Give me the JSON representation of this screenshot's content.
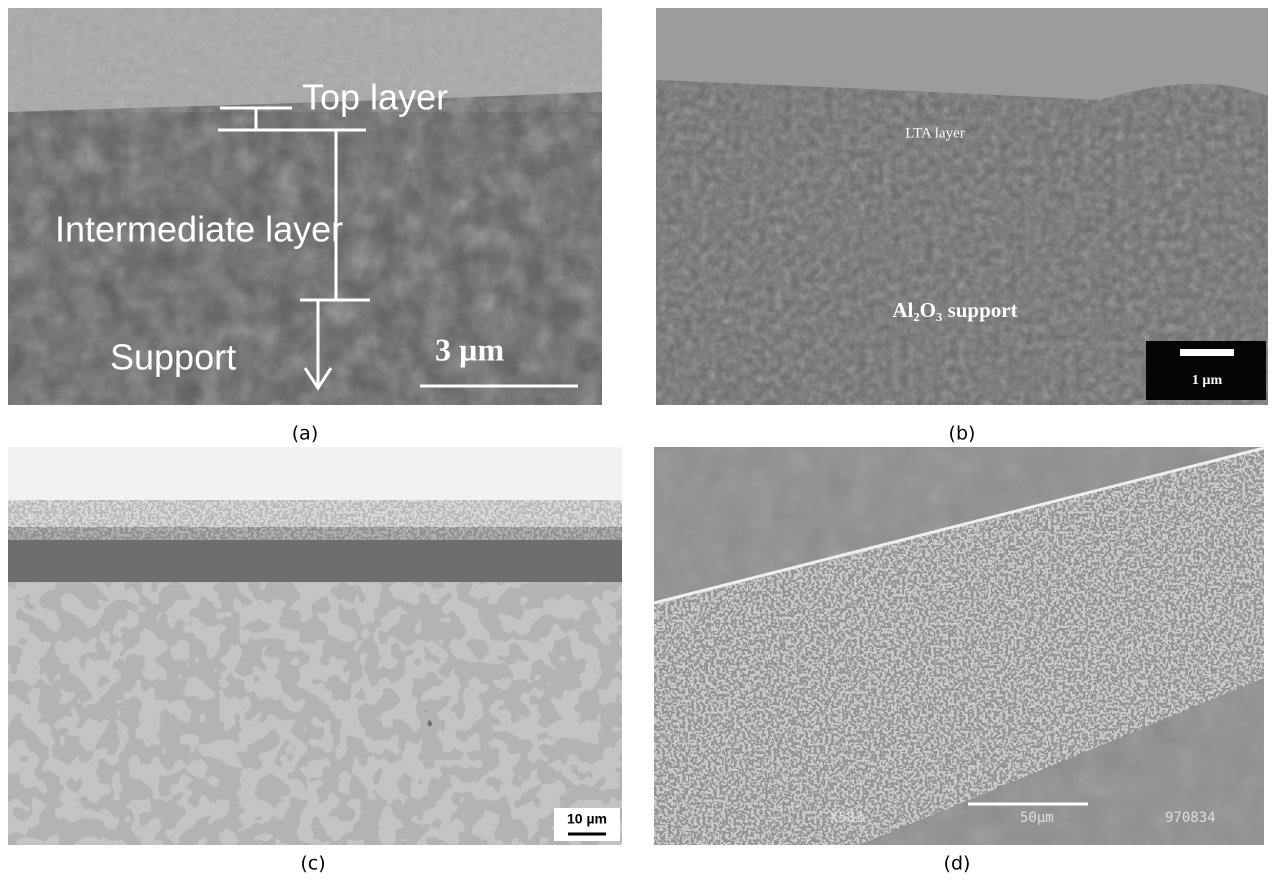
{
  "panels": [
    {
      "caption": "(a)",
      "labels": [
        "Top layer",
        "Intermediate layer",
        "Support"
      ],
      "scale": "3 µm"
    },
    {
      "caption": "(b)",
      "labels": [
        "LTA layer",
        "Al₂O₃ support"
      ],
      "scale": "1 µm"
    },
    {
      "caption": "(c)",
      "labels": [],
      "scale": "10 µm"
    },
    {
      "caption": "(d)",
      "labels": [
        "X583",
        "970834"
      ],
      "scale": "50µm"
    }
  ]
}
